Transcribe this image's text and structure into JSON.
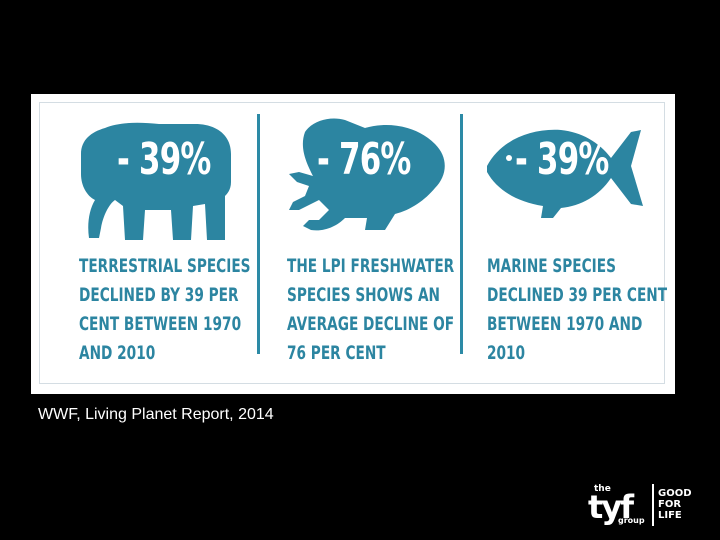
{
  "infographic": {
    "panels": [
      {
        "animal": "elephant-icon",
        "percent": "- 39%",
        "description": "TERRESTRIAL SPECIES\nDECLINED BY 39 PER\nCENT BETWEEN 1970\nAND 2010"
      },
      {
        "animal": "frog-icon",
        "percent": "- 76%",
        "description": "THE LPI FRESHWATER\nSPECIES SHOWS AN\nAVERAGE DECLINE OF\n76 PER CENT"
      },
      {
        "animal": "fish-icon",
        "percent": "- 39%",
        "description": "MARINE SPECIES\nDECLINED 39 PER CENT\nBETWEEN 1970 AND\n2010"
      }
    ],
    "accent_color": "#2c85a1"
  },
  "caption": "WWF, Living Planet Report, 2014",
  "logo": {
    "the": "the",
    "name": "tyf",
    "group": "group",
    "tagline": "GOOD\nFOR\nLIFE"
  }
}
